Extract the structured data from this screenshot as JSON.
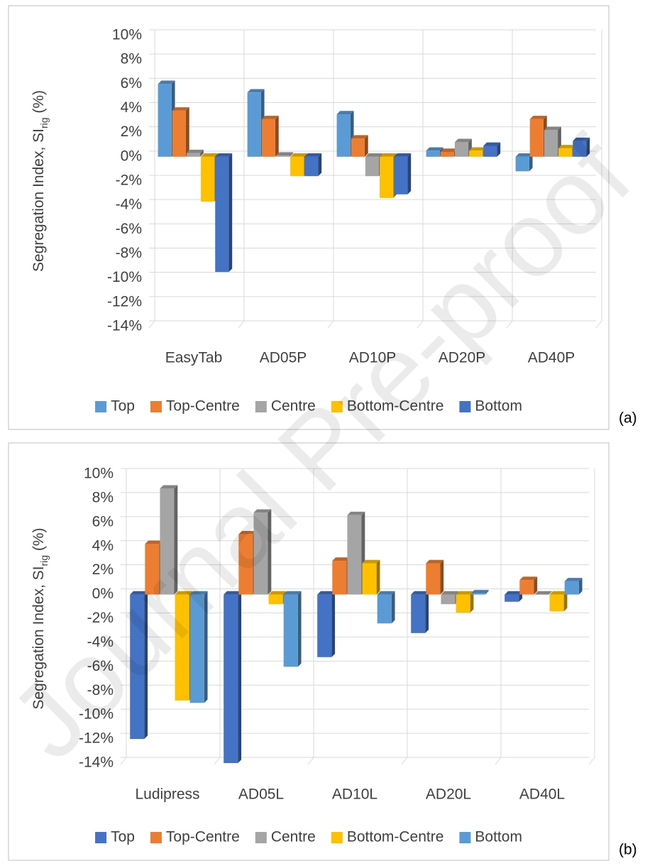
{
  "watermark": "Journal Pre-proof",
  "chart_data": [
    {
      "type": "bar",
      "panel_label": "(a)",
      "y_label": {
        "text": "Segregation Index, SI",
        "subscript": "rig",
        "suffix": " (%)"
      },
      "categories": [
        "EasyTab",
        "AD05P",
        "AD10P",
        "AD20P",
        "AD40P"
      ],
      "series": [
        {
          "name": "Top",
          "color": "#5b9bd5",
          "values": [
            6.0,
            5.3,
            3.5,
            0.5,
            -1.2
          ]
        },
        {
          "name": "Top-Centre",
          "color": "#ed7d31",
          "values": [
            3.8,
            3.1,
            1.5,
            0.4,
            3.1
          ]
        },
        {
          "name": "Centre",
          "color": "#a5a5a5",
          "values": [
            0.3,
            0.1,
            -1.6,
            1.2,
            2.2
          ]
        },
        {
          "name": "Bottom-Centre",
          "color": "#ffc000",
          "values": [
            -3.7,
            -1.6,
            -3.4,
            0.5,
            0.7
          ]
        },
        {
          "name": "Bottom",
          "color": "#4472c4",
          "values": [
            -9.5,
            -1.6,
            -3.1,
            0.9,
            1.3
          ]
        }
      ],
      "ylim": [
        -14,
        10
      ],
      "yticks": [
        {
          "value": -14,
          "label": "-14%"
        },
        {
          "value": -12,
          "label": "-12%"
        },
        {
          "value": -10,
          "label": "-10%"
        },
        {
          "value": -8,
          "label": "-8%"
        },
        {
          "value": -6,
          "label": "-6%"
        },
        {
          "value": -4,
          "label": "-4%"
        },
        {
          "value": -2,
          "label": "-2%"
        },
        {
          "value": 0,
          "label": "0%"
        },
        {
          "value": 2,
          "label": "2%"
        },
        {
          "value": 4,
          "label": "4%"
        },
        {
          "value": 6,
          "label": "6%"
        },
        {
          "value": 8,
          "label": "8%"
        },
        {
          "value": 10,
          "label": "10%"
        }
      ],
      "grid": true,
      "legend": "bottom"
    },
    {
      "type": "bar",
      "panel_label": "(b)",
      "y_label": {
        "text": "Segregation Index, SI",
        "subscript": "rig",
        "suffix": " (%)"
      },
      "categories": [
        "Ludipress",
        "AD05L",
        "AD10L",
        "AD20L",
        "AD40L"
      ],
      "series": [
        {
          "name": "Top",
          "color": "#4472c4",
          "values": [
            -12.0,
            -14.0,
            -5.2,
            -3.2,
            -0.6
          ]
        },
        {
          "name": "Top-Centre",
          "color": "#ed7d31",
          "values": [
            4.2,
            5.0,
            2.8,
            2.6,
            1.2
          ]
        },
        {
          "name": "Centre",
          "color": "#a5a5a5",
          "values": [
            8.8,
            6.8,
            6.6,
            -0.8,
            0
          ]
        },
        {
          "name": "Bottom-Centre",
          "color": "#ffc000",
          "values": [
            -8.8,
            -0.8,
            2.6,
            -1.5,
            -1.4
          ]
        },
        {
          "name": "Bottom",
          "color": "#5b9bd5",
          "values": [
            -9.0,
            -6.0,
            -2.4,
            0.1,
            1.1
          ]
        }
      ],
      "ylim": [
        -14,
        10
      ],
      "yticks": [
        {
          "value": -14,
          "label": "-14%"
        },
        {
          "value": -12,
          "label": "-12%"
        },
        {
          "value": -10,
          "label": "-10%"
        },
        {
          "value": -8,
          "label": "-8%"
        },
        {
          "value": -6,
          "label": "-6%"
        },
        {
          "value": -4,
          "label": "-4%"
        },
        {
          "value": -2,
          "label": "-2%"
        },
        {
          "value": 0,
          "label": "0%"
        },
        {
          "value": 2,
          "label": "2%"
        },
        {
          "value": 4,
          "label": "4%"
        },
        {
          "value": 6,
          "label": "6%"
        },
        {
          "value": 8,
          "label": "8%"
        },
        {
          "value": 10,
          "label": "10%"
        }
      ],
      "grid": true,
      "legend": "bottom"
    }
  ]
}
